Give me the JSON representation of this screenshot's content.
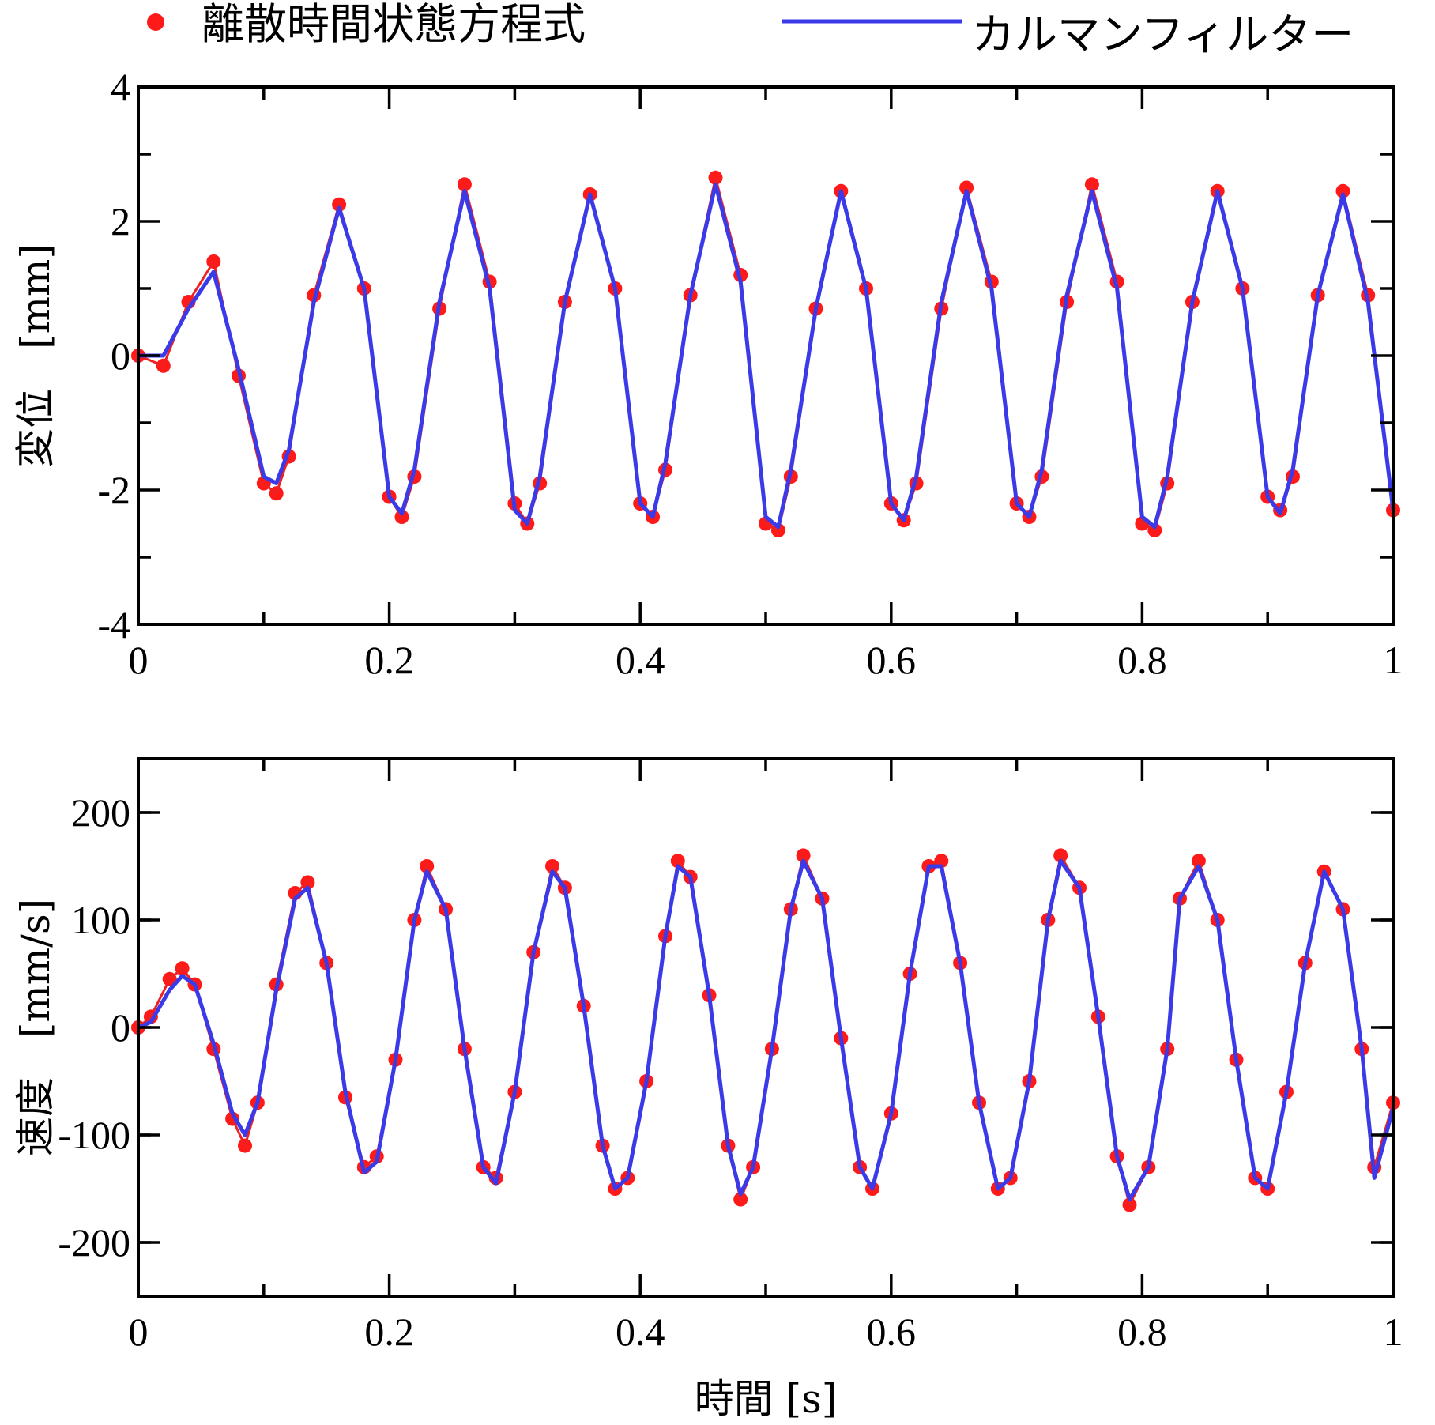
{
  "legend": {
    "markers_label": "離散時間状態方程式",
    "line_label": "カルマンフィルター"
  },
  "colors": {
    "markers": "#ff1a1a",
    "markers_trace": "#ee2020",
    "line": "#3a3ae8"
  },
  "chart_data": [
    {
      "type": "line",
      "panel": "top",
      "ylabel": "変位　[mm]",
      "xlabel": "",
      "xlim": [
        0,
        1
      ],
      "ylim": [
        -4,
        4
      ],
      "xticks": [
        "0",
        "0.2",
        "0.4",
        "0.6",
        "0.8",
        "1"
      ],
      "yticks": [
        "4",
        "2",
        "0",
        "-2",
        "-4"
      ],
      "grid": false,
      "legend_position": "top, outside",
      "series": [
        {
          "name": "離散時間状態方程式",
          "style": "red filled markers",
          "x": [
            0.0,
            0.02,
            0.04,
            0.06,
            0.08,
            0.1,
            0.11,
            0.12,
            0.14,
            0.16,
            0.18,
            0.2,
            0.21,
            0.22,
            0.24,
            0.26,
            0.28,
            0.3,
            0.31,
            0.32,
            0.34,
            0.36,
            0.38,
            0.4,
            0.41,
            0.42,
            0.44,
            0.46,
            0.48,
            0.5,
            0.51,
            0.52,
            0.54,
            0.56,
            0.58,
            0.6,
            0.61,
            0.62,
            0.64,
            0.66,
            0.68,
            0.7,
            0.71,
            0.72,
            0.74,
            0.76,
            0.78,
            0.8,
            0.81,
            0.82,
            0.84,
            0.86,
            0.88,
            0.9,
            0.91,
            0.92,
            0.94,
            0.96,
            0.98,
            1.0
          ],
          "y": [
            0,
            -0.15,
            0.8,
            1.4,
            -0.3,
            -1.9,
            -2.05,
            -1.5,
            0.9,
            2.25,
            1.0,
            -2.1,
            -2.4,
            -1.8,
            0.7,
            2.55,
            1.1,
            -2.2,
            -2.5,
            -1.9,
            0.8,
            2.4,
            1.0,
            -2.2,
            -2.4,
            -1.7,
            0.9,
            2.65,
            1.2,
            -2.5,
            -2.6,
            -1.8,
            0.7,
            2.45,
            1.0,
            -2.2,
            -2.45,
            -1.9,
            0.7,
            2.5,
            1.1,
            -2.2,
            -2.4,
            -1.8,
            0.8,
            2.55,
            1.1,
            -2.5,
            -2.6,
            -1.9,
            0.8,
            2.45,
            1.0,
            -2.1,
            -2.3,
            -1.8,
            0.9,
            2.45,
            0.9,
            -2.3
          ]
        },
        {
          "name": "カルマンフィルター",
          "style": "blue solid line",
          "x": [
            0.0,
            0.02,
            0.04,
            0.06,
            0.08,
            0.1,
            0.11,
            0.12,
            0.14,
            0.16,
            0.18,
            0.2,
            0.21,
            0.22,
            0.24,
            0.26,
            0.28,
            0.3,
            0.31,
            0.32,
            0.34,
            0.36,
            0.38,
            0.4,
            0.41,
            0.42,
            0.44,
            0.46,
            0.48,
            0.5,
            0.51,
            0.52,
            0.54,
            0.56,
            0.58,
            0.6,
            0.61,
            0.62,
            0.64,
            0.66,
            0.68,
            0.7,
            0.71,
            0.72,
            0.74,
            0.76,
            0.78,
            0.8,
            0.81,
            0.82,
            0.84,
            0.86,
            0.88,
            0.9,
            0.91,
            0.92,
            0.94,
            0.96,
            0.98,
            1.0
          ],
          "y": [
            0,
            0,
            0.7,
            1.25,
            -0.2,
            -1.8,
            -1.9,
            -1.4,
            0.8,
            2.2,
            1.0,
            -2.1,
            -2.35,
            -1.7,
            0.8,
            2.45,
            1.0,
            -2.3,
            -2.5,
            -1.8,
            0.8,
            2.4,
            1.0,
            -2.2,
            -2.4,
            -1.6,
            0.9,
            2.55,
            1.1,
            -2.4,
            -2.55,
            -1.7,
            0.7,
            2.45,
            1.0,
            -2.2,
            -2.45,
            -1.8,
            0.8,
            2.45,
            1.0,
            -2.2,
            -2.4,
            -1.7,
            0.9,
            2.45,
            1.0,
            -2.4,
            -2.55,
            -1.8,
            0.8,
            2.45,
            1.0,
            -2.1,
            -2.35,
            -1.7,
            0.9,
            2.4,
            0.8,
            -2.3
          ]
        }
      ]
    },
    {
      "type": "line",
      "panel": "bottom",
      "ylabel": "速度　[mm/s]",
      "xlabel": "時間 [s]",
      "xlim": [
        0,
        1
      ],
      "ylim": [
        -250,
        250
      ],
      "xticks": [
        "0",
        "0.2",
        "0.4",
        "0.6",
        "0.8",
        "1"
      ],
      "yticks": [
        "200",
        "100",
        "0",
        "-100",
        "-200"
      ],
      "grid": false,
      "series": [
        {
          "name": "離散時間状態方程式",
          "style": "red filled markers",
          "x": [
            0.0,
            0.01,
            0.025,
            0.035,
            0.045,
            0.06,
            0.075,
            0.085,
            0.095,
            0.11,
            0.125,
            0.135,
            0.15,
            0.165,
            0.18,
            0.19,
            0.205,
            0.22,
            0.23,
            0.245,
            0.26,
            0.275,
            0.285,
            0.3,
            0.315,
            0.33,
            0.34,
            0.355,
            0.37,
            0.38,
            0.39,
            0.405,
            0.42,
            0.43,
            0.44,
            0.455,
            0.47,
            0.48,
            0.49,
            0.505,
            0.52,
            0.53,
            0.545,
            0.56,
            0.575,
            0.585,
            0.6,
            0.615,
            0.63,
            0.64,
            0.655,
            0.67,
            0.685,
            0.695,
            0.71,
            0.725,
            0.735,
            0.75,
            0.765,
            0.78,
            0.79,
            0.805,
            0.82,
            0.83,
            0.845,
            0.86,
            0.875,
            0.89,
            0.9,
            0.915,
            0.93,
            0.945,
            0.96,
            0.975,
            0.985,
            1.0
          ],
          "y": [
            0,
            10,
            45,
            55,
            40,
            -20,
            -85,
            -110,
            -70,
            40,
            125,
            135,
            60,
            -65,
            -130,
            -120,
            -30,
            100,
            150,
            110,
            -20,
            -130,
            -140,
            -60,
            70,
            150,
            130,
            20,
            -110,
            -150,
            -140,
            -50,
            85,
            155,
            140,
            30,
            -110,
            -160,
            -130,
            -20,
            110,
            160,
            120,
            -10,
            -130,
            -150,
            -80,
            50,
            150,
            155,
            60,
            -70,
            -150,
            -140,
            -50,
            100,
            160,
            130,
            10,
            -120,
            -165,
            -130,
            -20,
            120,
            155,
            100,
            -30,
            -140,
            -150,
            -60,
            60,
            145,
            110,
            -20,
            -130,
            -70
          ]
        },
        {
          "name": "カルマンフィルター",
          "style": "blue solid line",
          "x": [
            0.0,
            0.01,
            0.025,
            0.035,
            0.045,
            0.06,
            0.075,
            0.085,
            0.095,
            0.11,
            0.125,
            0.135,
            0.15,
            0.165,
            0.18,
            0.19,
            0.205,
            0.22,
            0.23,
            0.245,
            0.26,
            0.275,
            0.285,
            0.3,
            0.315,
            0.33,
            0.34,
            0.355,
            0.37,
            0.38,
            0.39,
            0.405,
            0.42,
            0.43,
            0.44,
            0.455,
            0.47,
            0.48,
            0.49,
            0.505,
            0.52,
            0.53,
            0.545,
            0.56,
            0.575,
            0.585,
            0.6,
            0.615,
            0.63,
            0.64,
            0.655,
            0.67,
            0.685,
            0.695,
            0.71,
            0.725,
            0.735,
            0.75,
            0.765,
            0.78,
            0.79,
            0.805,
            0.82,
            0.83,
            0.845,
            0.86,
            0.875,
            0.89,
            0.9,
            0.915,
            0.93,
            0.945,
            0.96,
            0.975,
            0.985,
            1.0
          ],
          "y": [
            0,
            5,
            35,
            48,
            40,
            -15,
            -80,
            -100,
            -70,
            35,
            120,
            130,
            60,
            -60,
            -135,
            -125,
            -30,
            100,
            145,
            110,
            -20,
            -130,
            -145,
            -60,
            70,
            145,
            130,
            20,
            -110,
            -150,
            -140,
            -50,
            85,
            150,
            140,
            30,
            -110,
            -155,
            -130,
            -20,
            110,
            155,
            120,
            -10,
            -130,
            -150,
            -80,
            50,
            150,
            150,
            60,
            -70,
            -150,
            -140,
            -50,
            100,
            155,
            130,
            10,
            -120,
            -160,
            -130,
            -20,
            120,
            150,
            100,
            -30,
            -140,
            -150,
            -60,
            60,
            145,
            110,
            -20,
            -140,
            -75
          ]
        }
      ]
    }
  ]
}
